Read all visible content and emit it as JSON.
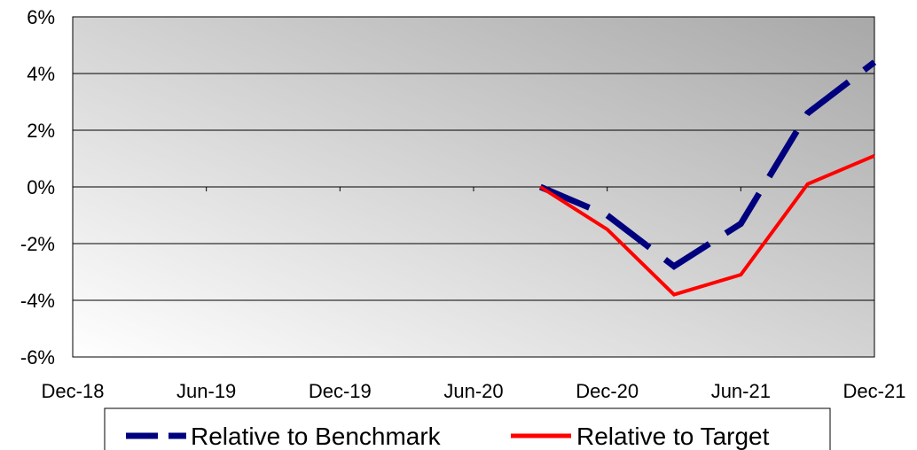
{
  "chart_data": {
    "type": "line",
    "x": [
      "Sep-20",
      "Dec-20",
      "Mar-21",
      "Jun-21",
      "Sep-21",
      "Dec-21"
    ],
    "series": [
      {
        "name": "Relative to Benchmark",
        "values": [
          0.0,
          -1.0,
          -2.8,
          -1.3,
          2.6,
          4.4
        ],
        "color": "#00007f",
        "style": "dashed"
      },
      {
        "name": "Relative to Target",
        "values": [
          0.0,
          -1.5,
          -3.8,
          -3.1,
          0.1,
          1.1
        ],
        "color": "#ff0000",
        "style": "solid"
      }
    ],
    "x_tick_labels": [
      "Dec-18",
      "Jun-19",
      "Dec-19",
      "Jun-20",
      "Dec-20",
      "Jun-21",
      "Dec-21"
    ],
    "y_tick_labels": [
      "6%",
      "4%",
      "2%",
      "0%",
      "-2%",
      "-4%",
      "-6%"
    ],
    "ylim": [
      -6,
      6
    ],
    "xlim": [
      "Dec-18",
      "Dec-21"
    ],
    "grid": true,
    "legend_position": "bottom",
    "background": "gradient white to gray"
  }
}
